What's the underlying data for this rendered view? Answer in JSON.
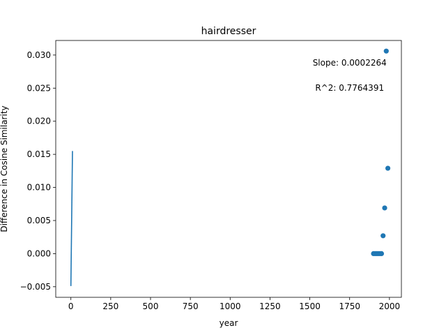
{
  "chart_data": {
    "type": "scatter",
    "title": "hairdresser",
    "xlabel": "year",
    "ylabel": "Difference in Cosine Similarity",
    "xlim": [
      -95,
      2075
    ],
    "ylim": [
      -0.0066,
      0.0322
    ],
    "xticks": [
      0,
      250,
      500,
      750,
      1000,
      1250,
      1500,
      1750,
      2000
    ],
    "yticks": [
      -0.005,
      0.0,
      0.005,
      0.01,
      0.015,
      0.02,
      0.025,
      0.03
    ],
    "xtick_labels": [
      "0",
      "250",
      "500",
      "750",
      "1000",
      "1250",
      "1500",
      "1750",
      "2000"
    ],
    "ytick_labels": [
      "−0.005",
      "0.000",
      "0.005",
      "0.010",
      "0.015",
      "0.020",
      "0.025",
      "0.030"
    ],
    "grid": false,
    "series": [
      {
        "kind": "points",
        "color": "#1f77b4",
        "points": [
          {
            "x": 1900,
            "y": 0.0
          },
          {
            "x": 1910,
            "y": 0.0
          },
          {
            "x": 1920,
            "y": 0.0
          },
          {
            "x": 1930,
            "y": 0.0
          },
          {
            "x": 1940,
            "y": 0.0
          },
          {
            "x": 1950,
            "y": 0.0
          },
          {
            "x": 1960,
            "y": 0.0027
          },
          {
            "x": 1970,
            "y": 0.0069
          },
          {
            "x": 1980,
            "y": 0.0306
          },
          {
            "x": 1990,
            "y": 0.0129
          }
        ]
      },
      {
        "kind": "line",
        "color": "#1f77b4",
        "points": [
          {
            "x": 0,
            "y": -0.0049
          },
          {
            "x": 10,
            "y": 0.0155
          }
        ]
      }
    ],
    "annotations": [
      {
        "text": "Slope: 0.0002264",
        "x": 1750,
        "y": 0.0284
      },
      {
        "text": "R^2: 0.7764391",
        "x": 1750,
        "y": 0.0246
      }
    ]
  }
}
